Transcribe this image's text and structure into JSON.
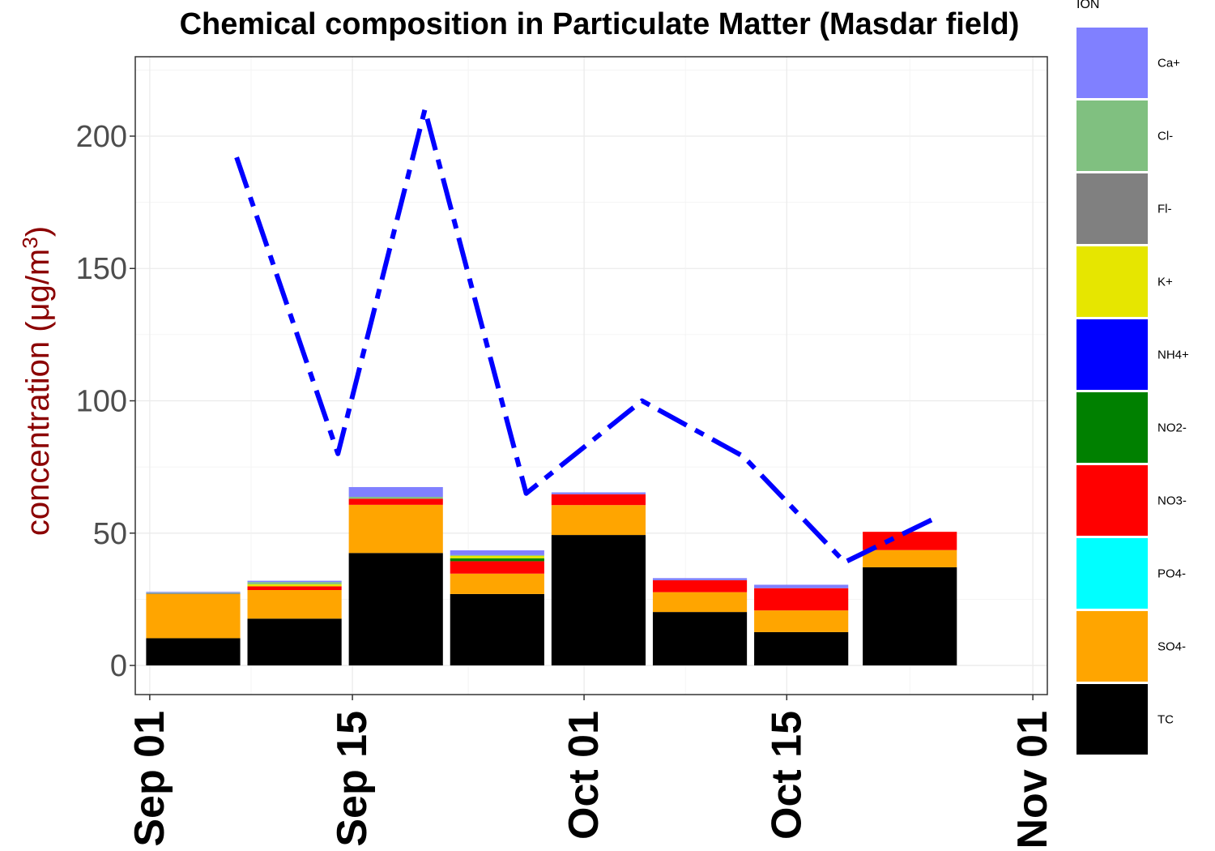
{
  "chart_data": {
    "type": "bar",
    "stacked": true,
    "title": "Chemical composition in Particulate Matter (Masdar field)",
    "ylabel": "concentration (μg/m",
    "ylabel_superscript": "3",
    "ylabel_close": ")",
    "xlabel": "",
    "ylim": [
      -11,
      230
    ],
    "yticks": [
      0,
      50,
      100,
      150,
      200
    ],
    "xlim": [
      "2015-08-31",
      "2015-11-02"
    ],
    "xticks": [
      {
        "date": "2015-09-01",
        "label": "Sep 01"
      },
      {
        "date": "2015-09-15",
        "label": "Sep 15"
      },
      {
        "date": "2015-10-01",
        "label": "Oct 01"
      },
      {
        "date": "2015-10-15",
        "label": "Oct 15"
      },
      {
        "date": "2015-11-01",
        "label": "Nov 01"
      }
    ],
    "grid": true,
    "legend_title": "ION",
    "legend_position": "right",
    "series_order_bottom_to_top": [
      "TC",
      "SO4-",
      "PO4-",
      "NO3-",
      "NO2-",
      "NH4+",
      "K+",
      "Fl-",
      "Cl-",
      "Ca+"
    ],
    "legend_order": [
      "Ca+",
      "Cl-",
      "Fl-",
      "K+",
      "NH4+",
      "NO2-",
      "NO3-",
      "PO4-",
      "SO4-",
      "TC"
    ],
    "colors": {
      "Ca+": "#8080ff",
      "Cl-": "#80c080",
      "Fl-": "#808080",
      "K+": "#e6e600",
      "NH4+": "#0000ff",
      "NO2-": "#008000",
      "NO3-": "#ff0000",
      "PO4-": "#00ffff",
      "SO4-": "#ffa500",
      "TC": "#000000"
    },
    "bars": [
      {
        "date": "2015-09-04",
        "values": {
          "TC": 10.3,
          "SO4-": 16.7,
          "PO4-": 0,
          "NO3-": 0.0,
          "NO2-": 0,
          "NH4+": 0,
          "K+": 0,
          "Fl-": 0.3,
          "Cl-": 0.2,
          "Ca+": 0.3
        }
      },
      {
        "date": "2015-09-11",
        "values": {
          "TC": 17.7,
          "SO4-": 10.8,
          "PO4-": 0,
          "NO3-": 1.4,
          "NO2-": 0,
          "NH4+": 0,
          "K+": 0.8,
          "Fl-": 0,
          "Cl-": 0.8,
          "Ca+": 0.5
        }
      },
      {
        "date": "2015-09-18",
        "values": {
          "TC": 42.5,
          "SO4-": 18.2,
          "PO4-": 0,
          "NO3-": 2.3,
          "NO2-": 0,
          "NH4+": 0,
          "K+": 0,
          "Fl-": 0,
          "Cl-": 0.7,
          "Ca+": 3.7
        }
      },
      {
        "date": "2015-09-25",
        "values": {
          "TC": 27.0,
          "SO4-": 7.7,
          "PO4-": 0,
          "NO3-": 4.7,
          "NO2-": 1.1,
          "NH4+": 0,
          "K+": 0.9,
          "Fl-": 0,
          "Cl-": 0.3,
          "Ca+": 1.8
        }
      },
      {
        "date": "2015-10-02",
        "values": {
          "TC": 49.3,
          "SO4-": 11.3,
          "PO4-": 0,
          "NO3-": 4.1,
          "NO2-": 0,
          "NH4+": 0,
          "K+": 0,
          "Fl-": 0,
          "Cl-": 0,
          "Ca+": 0.7
        }
      },
      {
        "date": "2015-10-09",
        "values": {
          "TC": 20.2,
          "SO4-": 7.5,
          "PO4-": 0,
          "NO3-": 4.5,
          "NO2-": 0,
          "NH4+": 0,
          "K+": 0,
          "Fl-": 0,
          "Cl-": 0,
          "Ca+": 0.8
        }
      },
      {
        "date": "2015-10-16",
        "values": {
          "TC": 12.6,
          "SO4-": 8.2,
          "PO4-": 0,
          "NO3-": 8.4,
          "NO2-": 0,
          "NH4+": 0,
          "K+": 0,
          "Fl-": 0,
          "Cl-": 0,
          "Ca+": 1.3
        }
      },
      {
        "date": "2015-10-23.5",
        "values": {
          "TC": 37.1,
          "SO4-": 6.5,
          "PO4-": 0,
          "NO3-": 6.9,
          "NO2-": 0,
          "NH4+": 0,
          "K+": 0,
          "Fl-": 0,
          "Cl-": 0,
          "Ca+": 0
        }
      }
    ],
    "line": {
      "style": "dashed",
      "color": "#0000ff",
      "points": [
        {
          "date": "2015-09-07",
          "value": 192
        },
        {
          "date": "2015-09-14",
          "value": 80
        },
        {
          "date": "2015-09-20",
          "value": 210
        },
        {
          "date": "2015-09-27",
          "value": 65
        },
        {
          "date": "2015-10-05",
          "value": 100
        },
        {
          "date": "2015-10-12",
          "value": 79
        },
        {
          "date": "2015-10-19",
          "value": 39
        },
        {
          "date": "2015-10-25",
          "value": 55
        }
      ]
    }
  }
}
